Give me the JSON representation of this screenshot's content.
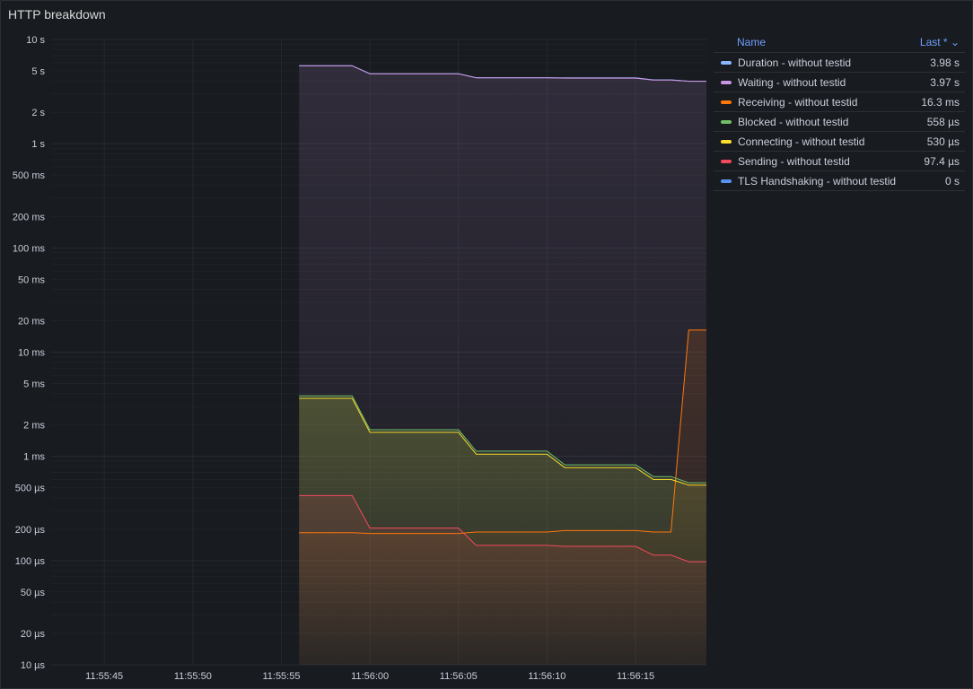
{
  "panel": {
    "title": "HTTP breakdown"
  },
  "legend": {
    "name_header": "Name",
    "last_header": "Last *",
    "rows": [
      {
        "name": "Duration - without testid",
        "value": "3.98 s",
        "color": "#8ab8ff"
      },
      {
        "name": "Waiting - without testid",
        "value": "3.97 s",
        "color": "#ca95e5"
      },
      {
        "name": "Receiving - without testid",
        "value": "16.3 ms",
        "color": "#ff780a"
      },
      {
        "name": "Blocked - without testid",
        "value": "558 µs",
        "color": "#73bf69"
      },
      {
        "name": "Connecting - without testid",
        "value": "530 µs",
        "color": "#fade2a"
      },
      {
        "name": "Sending - without testid",
        "value": "97.4 µs",
        "color": "#f2495c"
      },
      {
        "name": "TLS Handshaking - without testid",
        "value": "0 s",
        "color": "#5794f2"
      }
    ]
  },
  "chart_data": {
    "type": "area",
    "y_scale": "log",
    "y_unit": "s",
    "ylim": [
      1e-05,
      10
    ],
    "y_ticks": [
      {
        "v": 10,
        "label": "10 s"
      },
      {
        "v": 5,
        "label": "5 s"
      },
      {
        "v": 2,
        "label": "2 s"
      },
      {
        "v": 1,
        "label": "1 s"
      },
      {
        "v": 0.5,
        "label": "500 ms"
      },
      {
        "v": 0.2,
        "label": "200 ms"
      },
      {
        "v": 0.1,
        "label": "100 ms"
      },
      {
        "v": 0.05,
        "label": "50 ms"
      },
      {
        "v": 0.02,
        "label": "20 ms"
      },
      {
        "v": 0.01,
        "label": "10 ms"
      },
      {
        "v": 0.005,
        "label": "5 ms"
      },
      {
        "v": 0.002,
        "label": "2 ms"
      },
      {
        "v": 0.001,
        "label": "1 ms"
      },
      {
        "v": 0.0005,
        "label": "500 µs"
      },
      {
        "v": 0.0002,
        "label": "200 µs"
      },
      {
        "v": 0.0001,
        "label": "100 µs"
      },
      {
        "v": 5e-05,
        "label": "50 µs"
      },
      {
        "v": 2e-05,
        "label": "20 µs"
      },
      {
        "v": 1e-05,
        "label": "10 µs"
      }
    ],
    "xlim": [
      "11:55:42",
      "11:56:19"
    ],
    "x_ticks": [
      "11:55:45",
      "11:55:50",
      "11:55:55",
      "11:56:00",
      "11:56:05",
      "11:56:10",
      "11:56:15"
    ],
    "grid": true,
    "legend_position": "right",
    "series": [
      {
        "name": "Duration - without testid",
        "color": "#8ab8ff",
        "fill": false,
        "points": [
          [
            "11:55:56",
            5.6
          ],
          [
            "11:55:59",
            5.6
          ],
          [
            "11:56:00",
            4.7
          ],
          [
            "11:56:05",
            4.7
          ],
          [
            "11:56:06",
            4.3
          ],
          [
            "11:56:10",
            4.3
          ],
          [
            "11:56:11",
            4.28
          ],
          [
            "11:56:15",
            4.28
          ],
          [
            "11:56:16",
            4.1
          ],
          [
            "11:56:17",
            4.1
          ],
          [
            "11:56:18",
            3.98
          ],
          [
            "11:56:19",
            3.98
          ]
        ]
      },
      {
        "name": "Waiting - without testid",
        "color": "#ca95e5",
        "fill": true,
        "points": [
          [
            "11:55:56",
            5.58
          ],
          [
            "11:55:59",
            5.58
          ],
          [
            "11:56:00",
            4.68
          ],
          [
            "11:56:05",
            4.68
          ],
          [
            "11:56:06",
            4.28
          ],
          [
            "11:56:10",
            4.28
          ],
          [
            "11:56:11",
            4.26
          ],
          [
            "11:56:15",
            4.26
          ],
          [
            "11:56:16",
            4.08
          ],
          [
            "11:56:17",
            4.08
          ],
          [
            "11:56:18",
            3.97
          ],
          [
            "11:56:19",
            3.97
          ]
        ]
      },
      {
        "name": "Receiving - without testid",
        "color": "#ff780a",
        "fill": true,
        "points": [
          [
            "11:55:56",
            0.000185
          ],
          [
            "11:55:59",
            0.000185
          ],
          [
            "11:56:00",
            0.000182
          ],
          [
            "11:56:05",
            0.000182
          ],
          [
            "11:56:06",
            0.000188
          ],
          [
            "11:56:10",
            0.000188
          ],
          [
            "11:56:11",
            0.000194
          ],
          [
            "11:56:15",
            0.000194
          ],
          [
            "11:56:16",
            0.000188
          ],
          [
            "11:56:17",
            0.000188
          ],
          [
            "11:56:18",
            0.0163
          ],
          [
            "11:56:19",
            0.0163
          ]
        ]
      },
      {
        "name": "Blocked - without testid",
        "color": "#73bf69",
        "fill": true,
        "points": [
          [
            "11:55:56",
            0.0038
          ],
          [
            "11:55:59",
            0.0038
          ],
          [
            "11:56:00",
            0.0018
          ],
          [
            "11:56:05",
            0.0018
          ],
          [
            "11:56:06",
            0.00112
          ],
          [
            "11:56:10",
            0.00112
          ],
          [
            "11:56:11",
            0.00083
          ],
          [
            "11:56:15",
            0.00083
          ],
          [
            "11:56:16",
            0.00064
          ],
          [
            "11:56:17",
            0.00064
          ],
          [
            "11:56:18",
            0.000558
          ],
          [
            "11:56:19",
            0.000558
          ]
        ]
      },
      {
        "name": "Connecting - without testid",
        "color": "#fade2a",
        "fill": true,
        "points": [
          [
            "11:55:56",
            0.0036
          ],
          [
            "11:55:59",
            0.0036
          ],
          [
            "11:56:00",
            0.0017
          ],
          [
            "11:56:05",
            0.0017
          ],
          [
            "11:56:06",
            0.00105
          ],
          [
            "11:56:10",
            0.00105
          ],
          [
            "11:56:11",
            0.00078
          ],
          [
            "11:56:15",
            0.00078
          ],
          [
            "11:56:16",
            0.0006
          ],
          [
            "11:56:17",
            0.0006
          ],
          [
            "11:56:18",
            0.00053
          ],
          [
            "11:56:19",
            0.00053
          ]
        ]
      },
      {
        "name": "Sending - without testid",
        "color": "#f2495c",
        "fill": true,
        "points": [
          [
            "11:55:56",
            0.00042
          ],
          [
            "11:55:59",
            0.00042
          ],
          [
            "11:56:00",
            0.000205
          ],
          [
            "11:56:05",
            0.000205
          ],
          [
            "11:56:06",
            0.00014
          ],
          [
            "11:56:10",
            0.00014
          ],
          [
            "11:56:11",
            0.000137
          ],
          [
            "11:56:15",
            0.000137
          ],
          [
            "11:56:16",
            0.000113
          ],
          [
            "11:56:17",
            0.000113
          ],
          [
            "11:56:18",
            9.74e-05
          ],
          [
            "11:56:19",
            9.74e-05
          ]
        ]
      }
    ]
  }
}
